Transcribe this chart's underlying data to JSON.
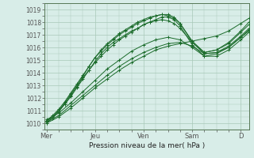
{
  "bg_color": "#d8ede8",
  "grid_color": "#a8c8b8",
  "line_color": "#1a6b2a",
  "ylabel_text": "Pression niveau de la mer( hPa )",
  "ylim": [
    1009.5,
    1019.5
  ],
  "yticks": [
    1010,
    1011,
    1012,
    1013,
    1014,
    1015,
    1016,
    1017,
    1018,
    1019
  ],
  "day_labels": [
    "Mer",
    "Jeu",
    "Ven",
    "Sam",
    "D"
  ],
  "day_positions": [
    0,
    24,
    48,
    72,
    96
  ],
  "xlim": [
    -1,
    100
  ],
  "series": [
    {
      "x": [
        0,
        6,
        12,
        18,
        24,
        30,
        36,
        42,
        48,
        54,
        60,
        66,
        72,
        78,
        84,
        90,
        96,
        100
      ],
      "y": [
        1010.0,
        1010.5,
        1011.2,
        1012.0,
        1012.8,
        1013.5,
        1014.2,
        1014.8,
        1015.3,
        1015.8,
        1016.1,
        1016.3,
        1016.5,
        1016.7,
        1016.9,
        1017.3,
        1017.9,
        1018.3
      ]
    },
    {
      "x": [
        0,
        6,
        12,
        18,
        24,
        30,
        36,
        42,
        48,
        54,
        60,
        66,
        72,
        78,
        84,
        90,
        96,
        100
      ],
      "y": [
        1010.1,
        1010.6,
        1011.4,
        1012.2,
        1013.0,
        1013.8,
        1014.5,
        1015.1,
        1015.6,
        1016.0,
        1016.3,
        1016.4,
        1016.1,
        1015.5,
        1015.6,
        1016.0,
        1016.8,
        1017.4
      ]
    },
    {
      "x": [
        0,
        6,
        12,
        18,
        24,
        30,
        36,
        42,
        48,
        54,
        60,
        66,
        72,
        78,
        84,
        90,
        96,
        100
      ],
      "y": [
        1010.2,
        1010.8,
        1011.6,
        1012.5,
        1013.4,
        1014.3,
        1015.0,
        1015.7,
        1016.2,
        1016.6,
        1016.8,
        1016.6,
        1016.0,
        1015.3,
        1015.3,
        1015.8,
        1016.6,
        1017.2
      ]
    },
    {
      "x": [
        0,
        3,
        6,
        9,
        12,
        15,
        18,
        21,
        24,
        27,
        30,
        33,
        36,
        39,
        42,
        45,
        48,
        51,
        54,
        57,
        60,
        63,
        66,
        72,
        78,
        84,
        90,
        96,
        100
      ],
      "y": [
        1010.3,
        1010.5,
        1011.0,
        1011.5,
        1012.2,
        1012.9,
        1013.6,
        1014.2,
        1014.8,
        1015.3,
        1015.8,
        1016.2,
        1016.6,
        1016.9,
        1017.2,
        1017.5,
        1017.8,
        1018.0,
        1018.2,
        1018.4,
        1018.4,
        1018.2,
        1017.7,
        1016.2,
        1015.3,
        1015.5,
        1016.0,
        1016.8,
        1017.3
      ]
    },
    {
      "x": [
        0,
        3,
        6,
        9,
        12,
        15,
        18,
        21,
        24,
        27,
        30,
        33,
        36,
        39,
        42,
        45,
        48,
        51,
        54,
        57,
        60,
        63,
        66,
        72,
        78,
        84,
        90,
        96,
        100
      ],
      "y": [
        1010.2,
        1010.6,
        1011.1,
        1011.7,
        1012.4,
        1013.1,
        1013.8,
        1014.5,
        1015.2,
        1015.7,
        1016.2,
        1016.6,
        1017.0,
        1017.3,
        1017.6,
        1017.9,
        1018.1,
        1018.3,
        1018.5,
        1018.6,
        1018.6,
        1018.4,
        1017.9,
        1016.4,
        1015.5,
        1015.6,
        1016.1,
        1016.9,
        1017.5
      ]
    },
    {
      "x": [
        0,
        3,
        6,
        9,
        12,
        15,
        18,
        21,
        24,
        27,
        30,
        33,
        36,
        39,
        42,
        45,
        48,
        51,
        54,
        57,
        60,
        63,
        66,
        72,
        78,
        84,
        90,
        96,
        100
      ],
      "y": [
        1010.1,
        1010.5,
        1011.0,
        1011.6,
        1012.3,
        1013.0,
        1013.7,
        1014.5,
        1015.2,
        1015.8,
        1016.3,
        1016.7,
        1017.1,
        1017.4,
        1017.7,
        1018.0,
        1018.2,
        1018.4,
        1018.5,
        1018.6,
        1018.5,
        1018.3,
        1017.9,
        1016.5,
        1015.6,
        1015.8,
        1016.3,
        1017.2,
        1017.8
      ]
    },
    {
      "x": [
        0,
        3,
        6,
        9,
        12,
        15,
        18,
        21,
        24,
        27,
        30,
        33,
        36,
        39,
        42,
        45,
        48,
        51,
        54,
        57,
        60,
        63,
        66,
        72,
        78,
        84,
        90,
        96,
        100
      ],
      "y": [
        1010.0,
        1010.4,
        1010.9,
        1011.5,
        1012.1,
        1012.8,
        1013.5,
        1014.2,
        1014.9,
        1015.5,
        1016.0,
        1016.4,
        1016.7,
        1017.0,
        1017.3,
        1017.5,
        1017.8,
        1018.0,
        1018.1,
        1018.2,
        1018.1,
        1017.9,
        1017.5,
        1016.4,
        1015.6,
        1015.8,
        1016.4,
        1017.3,
        1018.0
      ]
    }
  ]
}
